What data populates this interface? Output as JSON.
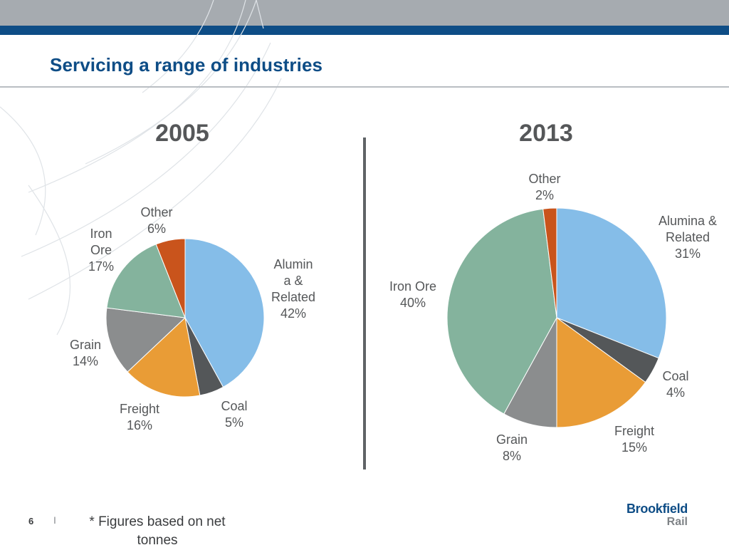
{
  "slide": {
    "title": "Servicing a range of industries",
    "footnote": "* Figures based on net tonnes",
    "page_number": "6",
    "page_separator": "I"
  },
  "logo": {
    "line1": "Brookfield",
    "line2": "Rail"
  },
  "colors": {
    "alumina": "#85bde8",
    "coal": "#545759",
    "freight": "#e99c36",
    "grain": "#8b8d8e",
    "iron_ore": "#84b39d",
    "other": "#c9541c",
    "brand_blue": "#0e4d86"
  },
  "chart_data": [
    {
      "type": "pie",
      "title": "2005",
      "series": [
        {
          "name": "Alumina & Related",
          "label_lines": [
            "Alumin",
            "a &",
            "Related",
            "42%"
          ],
          "value": 42,
          "color": "#85bde8"
        },
        {
          "name": "Coal",
          "label_lines": [
            "Coal",
            "5%"
          ],
          "value": 5,
          "color": "#545759"
        },
        {
          "name": "Freight",
          "label_lines": [
            "Freight",
            "16%"
          ],
          "value": 16,
          "color": "#e99c36"
        },
        {
          "name": "Grain",
          "label_lines": [
            "Grain",
            "14%"
          ],
          "value": 14,
          "color": "#8b8d8e"
        },
        {
          "name": "Iron Ore",
          "label_lines": [
            "Iron",
            "Ore",
            "17%"
          ],
          "value": 17,
          "color": "#84b39d"
        },
        {
          "name": "Other",
          "label_lines": [
            "Other",
            "6%"
          ],
          "value": 6,
          "color": "#c9541c"
        }
      ]
    },
    {
      "type": "pie",
      "title": "2013",
      "series": [
        {
          "name": "Alumina & Related",
          "label_lines": [
            "Alumina &",
            "Related",
            "31%"
          ],
          "value": 31,
          "color": "#85bde8"
        },
        {
          "name": "Coal",
          "label_lines": [
            "Coal",
            "4%"
          ],
          "value": 4,
          "color": "#545759"
        },
        {
          "name": "Freight",
          "label_lines": [
            "Freight",
            "15%"
          ],
          "value": 15,
          "color": "#e99c36"
        },
        {
          "name": "Grain",
          "label_lines": [
            "Grain",
            "8%"
          ],
          "value": 8,
          "color": "#8b8d8e"
        },
        {
          "name": "Iron Ore",
          "label_lines": [
            "Iron Ore",
            "40%"
          ],
          "value": 40,
          "color": "#84b39d"
        },
        {
          "name": "Other",
          "label_lines": [
            "Other",
            "2%"
          ],
          "value": 2,
          "color": "#c9541c"
        }
      ]
    }
  ]
}
